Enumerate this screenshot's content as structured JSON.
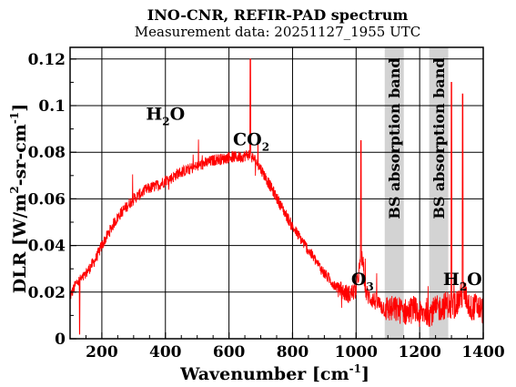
{
  "chart_data": {
    "type": "line",
    "title": "INO-CNR, REFIR-PAD spectrum",
    "subtitle": "Measurement data: 20251127_1955 UTC",
    "xlabel": "Wavenumber [cm-1]",
    "xlabel_main": "Wavenumber [cm",
    "xlabel_sup": "-1",
    "xlabel_end": "]",
    "ylabel_parts": [
      "DLR [W/m",
      "2",
      "-sr-cm",
      "-1",
      "]"
    ],
    "xlim": [
      100,
      1400
    ],
    "ylim": [
      0,
      0.125
    ],
    "xticks": [
      200,
      400,
      600,
      800,
      1000,
      1200,
      1400
    ],
    "xtick_labels": [
      "200",
      "400",
      "600",
      "800",
      "1000",
      "1200",
      "1400"
    ],
    "yticks": [
      0,
      0.02,
      0.04,
      0.06,
      0.08,
      0.1,
      0.12
    ],
    "ytick_labels": [
      "0",
      "0.02",
      "0.04",
      "0.06",
      "0.08",
      "0.1",
      "0.12"
    ],
    "grid": true,
    "line_color": "#ff0000",
    "band_color": "#d3d3d3",
    "bands": [
      {
        "x0": 1090,
        "x1": 1150,
        "label": "BS absorption band"
      },
      {
        "x0": 1230,
        "x1": 1290,
        "label": "BS absorption band"
      }
    ],
    "annotations": [
      {
        "x": 400,
        "y": 0.094,
        "label": "H",
        "sub": "2",
        "tail": "O"
      },
      {
        "x": 670,
        "y": 0.083,
        "label": "CO",
        "sub": "2",
        "tail": ""
      },
      {
        "x": 1020,
        "y": 0.023,
        "label": "O",
        "sub": "3",
        "tail": ""
      },
      {
        "x": 1335,
        "y": 0.023,
        "label": "H",
        "sub": "2",
        "tail": "O"
      }
    ],
    "series": [
      {
        "x": [
          100,
          120,
          140,
          160,
          180,
          200,
          220,
          240,
          260,
          280,
          300,
          320,
          340,
          360,
          380,
          400,
          420,
          440,
          460,
          480,
          500,
          520,
          540,
          560,
          580,
          600,
          620,
          640,
          660,
          680,
          700,
          720,
          740,
          760,
          780,
          800,
          820,
          840,
          860,
          880,
          900,
          920,
          940,
          960,
          980,
          1000,
          1010,
          1020,
          1030,
          1040,
          1060,
          1080,
          1090,
          1150,
          1160,
          1180,
          1200,
          1220,
          1230,
          1290,
          1300,
          1320,
          1340,
          1360,
          1380,
          1400
        ],
        "values": [
          0.018,
          0.024,
          0.026,
          0.03,
          0.034,
          0.04,
          0.045,
          0.05,
          0.054,
          0.057,
          0.06,
          0.062,
          0.064,
          0.065,
          0.066,
          0.068,
          0.069,
          0.071,
          0.072,
          0.073,
          0.074,
          0.075,
          0.076,
          0.077,
          0.077,
          0.078,
          0.078,
          0.078,
          0.079,
          0.077,
          0.073,
          0.068,
          0.063,
          0.058,
          0.053,
          0.048,
          0.044,
          0.04,
          0.036,
          0.032,
          0.028,
          0.025,
          0.022,
          0.02,
          0.019,
          0.021,
          0.03,
          0.035,
          0.02,
          0.018,
          0.016,
          0.014,
          0.013,
          0.012,
          0.011,
          0.013,
          0.01,
          0.012,
          0.011,
          0.015,
          0.013,
          0.016,
          0.02,
          0.013,
          0.014,
          0.012
        ]
      }
    ]
  }
}
